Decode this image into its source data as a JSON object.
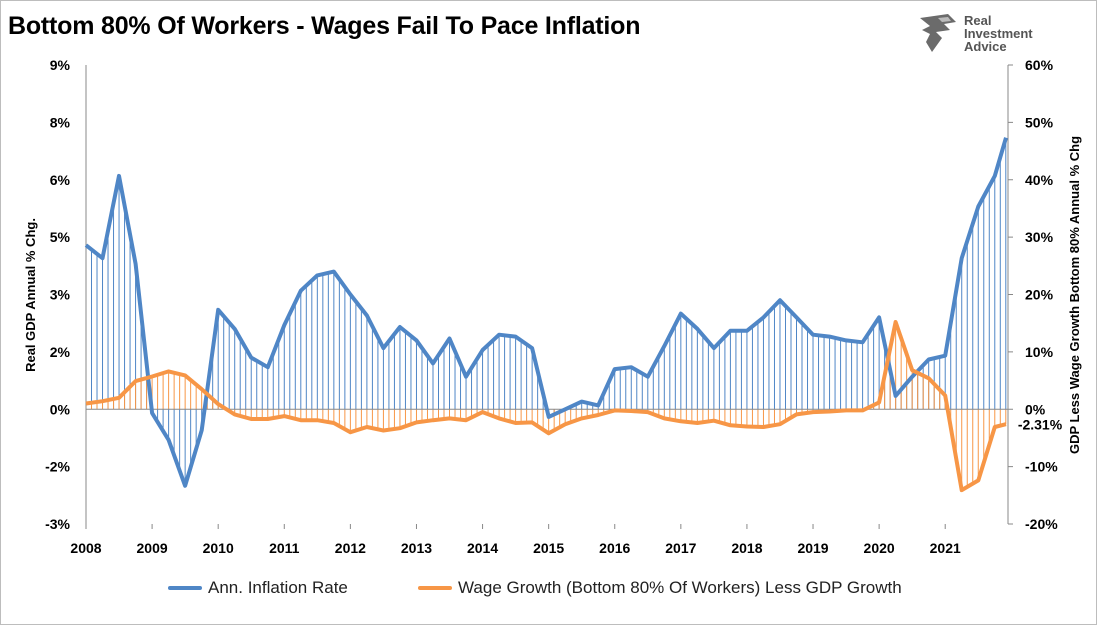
{
  "title": "Bottom 80% Of Workers - Wages Fail To Pace Inflation",
  "logo": {
    "line1": "Real",
    "line2": "Investment",
    "line3": "Advice"
  },
  "chart_data": {
    "type": "line",
    "title": "Bottom 80% Of Workers - Wages Fail To Pace Inflation",
    "xlim": [
      2008,
      2021.95
    ],
    "x_ticks": [
      "2008",
      "2009",
      "2010",
      "2011",
      "2012",
      "2013",
      "2014",
      "2015",
      "2016",
      "2017",
      "2018",
      "2019",
      "2020",
      "2021"
    ],
    "y_left": {
      "label": "Real GDP Annual % Chg.",
      "ylim": [
        -3,
        9
      ],
      "ticks": [
        {
          "v": 9,
          "t": "9%"
        },
        {
          "v": 7.5,
          "t": "8%"
        },
        {
          "v": 6,
          "t": "6%"
        },
        {
          "v": 4.5,
          "t": "5%"
        },
        {
          "v": 3,
          "t": "3%"
        },
        {
          "v": 1.5,
          "t": "2%"
        },
        {
          "v": 0,
          "t": "0%"
        },
        {
          "v": -1.5,
          "t": "-2%"
        },
        {
          "v": -3,
          "t": "-3%"
        }
      ]
    },
    "y_right": {
      "label": "GDP Less Wage Growth Bottom 80% Annual % Chg",
      "ylim": [
        -20,
        60
      ],
      "ticks": [
        {
          "v": 60,
          "t": "60%"
        },
        {
          "v": 50,
          "t": "50%"
        },
        {
          "v": 40,
          "t": "40%"
        },
        {
          "v": 30,
          "t": "30%"
        },
        {
          "v": 20,
          "t": "20%"
        },
        {
          "v": 10,
          "t": "10%"
        },
        {
          "v": 0,
          "t": "0%"
        },
        {
          "v": -10,
          "t": "-10%"
        },
        {
          "v": -20,
          "t": "-20%"
        }
      ]
    },
    "annotation": {
      "text": "-2.31%",
      "value": -2.31,
      "color": "#ff0000"
    },
    "legend_position": "bottom",
    "series": [
      {
        "name": "Ann. Inflation Rate",
        "axis": "left",
        "color": "#4f86c6",
        "x_start": 2008,
        "x_step": 0.25,
        "x_end": 2021.92,
        "values": [
          4.29,
          3.95,
          6.1,
          3.8,
          -0.1,
          -0.8,
          -2.0,
          -0.55,
          2.6,
          2.1,
          1.35,
          1.1,
          2.2,
          3.1,
          3.5,
          3.6,
          3.0,
          2.45,
          1.6,
          2.15,
          1.8,
          1.2,
          1.85,
          0.85,
          1.55,
          1.95,
          1.9,
          1.6,
          -0.2,
          0.0,
          0.2,
          0.1,
          1.05,
          1.1,
          0.85,
          1.65,
          2.5,
          2.1,
          1.6,
          2.05,
          2.05,
          2.4,
          2.85,
          2.4,
          1.95,
          1.9,
          1.8,
          1.75,
          2.4,
          0.35,
          0.85,
          1.3,
          1.4,
          3.95,
          5.3,
          6.1,
          7.1
        ]
      },
      {
        "name": "Wage Growth (Bottom 80% Of Workers) Less GDP Growth",
        "axis": "right",
        "color": "#f79646",
        "x_start": 2008,
        "x_step": 0.25,
        "x_end": 2021.92,
        "values": [
          1.0,
          1.4,
          2.0,
          4.9,
          5.7,
          6.6,
          5.9,
          3.5,
          0.9,
          -0.9,
          -1.7,
          -1.7,
          -1.2,
          -1.9,
          -1.9,
          -2.4,
          -4.0,
          -3.1,
          -3.7,
          -3.3,
          -2.3,
          -1.9,
          -1.6,
          -1.9,
          -0.5,
          -1.6,
          -2.4,
          -2.3,
          -4.2,
          -2.6,
          -1.6,
          -1.0,
          -0.2,
          -0.3,
          -0.5,
          -1.6,
          -2.1,
          -2.4,
          -2.0,
          -2.8,
          -3.0,
          -3.1,
          -2.6,
          -0.9,
          -0.5,
          -0.4,
          -0.2,
          -0.2,
          1.2,
          15.2,
          6.8,
          5.4,
          2.4,
          -14.1,
          -12.4,
          -3.1,
          -2.6
        ]
      }
    ]
  }
}
